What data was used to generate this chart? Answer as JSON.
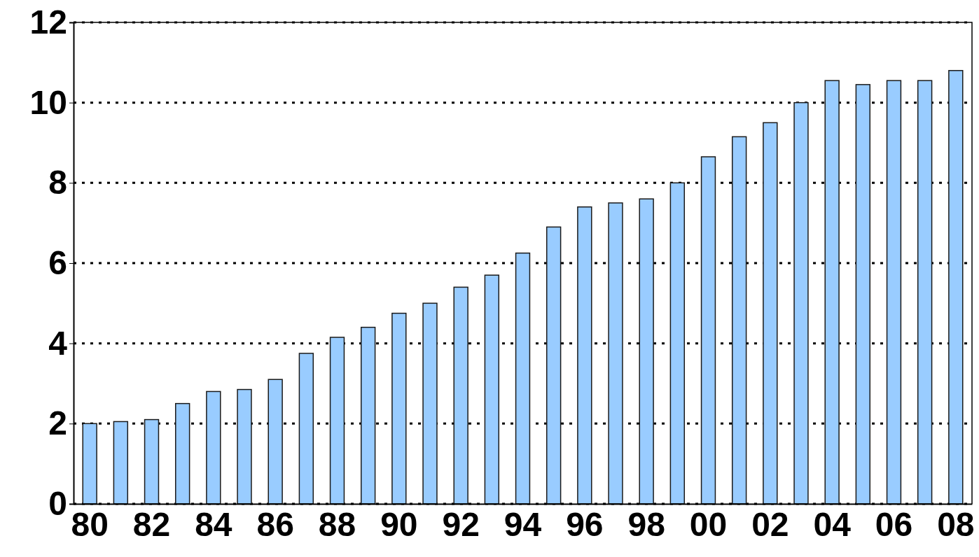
{
  "chart_data": {
    "type": "bar",
    "categories": [
      "80",
      null,
      "82",
      null,
      "84",
      null,
      "86",
      null,
      "88",
      null,
      "90",
      null,
      "92",
      null,
      "94",
      null,
      "96",
      null,
      "98",
      null,
      "00",
      null,
      "02",
      null,
      "04",
      null,
      "06",
      null,
      "08"
    ],
    "values": [
      2.0,
      2.05,
      2.1,
      2.5,
      2.8,
      2.85,
      3.1,
      3.75,
      4.15,
      4.4,
      4.75,
      5.0,
      5.4,
      5.7,
      6.25,
      6.9,
      7.4,
      7.5,
      7.6,
      8.0,
      8.65,
      9.15,
      9.5,
      10.0,
      10.55,
      10.45,
      10.55,
      10.55,
      10.8
    ],
    "color": "#99ccff",
    "ylim": [
      0,
      12
    ],
    "yticks": [
      0,
      2,
      4,
      6,
      8,
      10,
      12
    ],
    "grid": "y"
  }
}
